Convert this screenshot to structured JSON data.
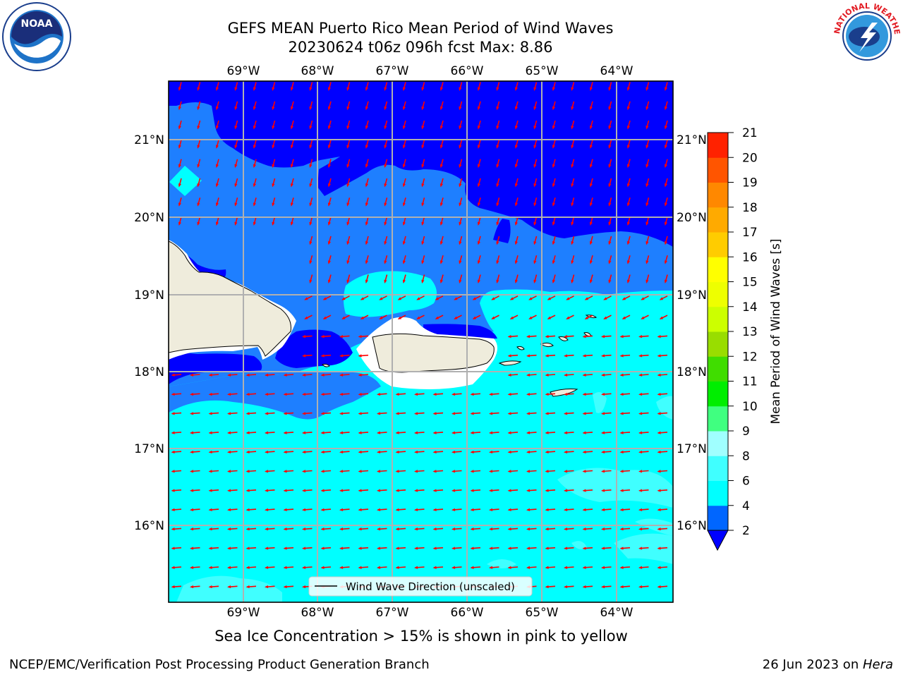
{
  "title": {
    "line1": "GEFS MEAN Puerto Rico Mean Period of Wind Waves",
    "line2": "20230624 t06z 096h fcst   Max: 8.86"
  },
  "subtitle": "Sea Ice Concentration > 15% is shown in pink to yellow",
  "footer": {
    "left": "NCEP/EMC/Verification Post Processing Product Generation Branch",
    "right_date": "26 Jun 2023 on ",
    "right_host": "Hera"
  },
  "axes": {
    "lon_labels": [
      "69°W",
      "68°W",
      "67°W",
      "66°W",
      "65°W",
      "64°W"
    ],
    "lat_labels": [
      "21°N",
      "20°N",
      "19°N",
      "18°N",
      "17°N",
      "16°N"
    ]
  },
  "legend": {
    "label": "Wind Wave Direction (unscaled)"
  },
  "colorbar": {
    "label": "Mean Period of Wind Waves [s]",
    "ticks": [
      "2",
      "4",
      "6",
      "8",
      "9",
      "10",
      "11",
      "12",
      "13",
      "14",
      "15",
      "16",
      "17",
      "18",
      "19",
      "20",
      "21"
    ],
    "colors": [
      "#0066ff",
      "#00ffff",
      "#40ffff",
      "#a0ffff",
      "#40ff80",
      "#00ee00",
      "#40dd00",
      "#99dd00",
      "#ccff00",
      "#eeff00",
      "#ffff00",
      "#ffcc00",
      "#ffaa00",
      "#ff8800",
      "#ff5500",
      "#ff2200"
    ],
    "under_color": "#0000ff"
  },
  "map": {
    "field_colors": {
      "lt2": "#0000ff",
      "2to4": "#1e7fff",
      "4to6": "#00ffff",
      "6to8": "#40ffff",
      "land": "#efecdc"
    },
    "arrow_color": "#ff0000"
  },
  "logos": {
    "noaa": {
      "text": "NOAA"
    },
    "nws": {
      "text": "NATIONAL WEATHER SERVICE"
    }
  }
}
